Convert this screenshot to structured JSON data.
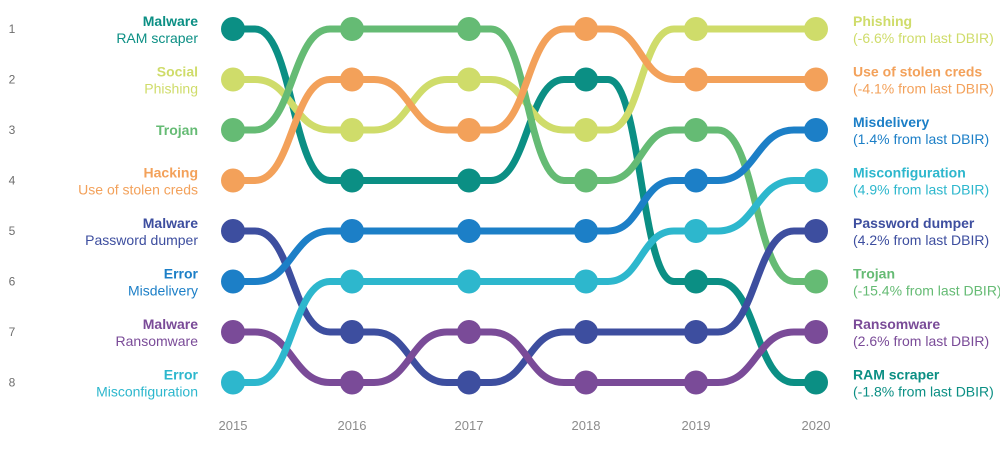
{
  "chart_data": {
    "type": "line",
    "subtype": "bump",
    "title": "",
    "xlabel": "",
    "ylabel": "",
    "x": [
      "2015",
      "2016",
      "2017",
      "2018",
      "2019",
      "2020"
    ],
    "y_ticks": [
      "1",
      "2",
      "3",
      "4",
      "5",
      "6",
      "7",
      "8"
    ],
    "ylim": [
      1,
      8
    ],
    "y_inverted": true,
    "grid": false,
    "series": [
      {
        "start_bold": "Malware",
        "start_label": "RAM scraper",
        "end_bold": "RAM scraper",
        "end_note": "(-1.8% from last DBIR)",
        "color": "#0b8f84",
        "values": [
          1,
          4,
          4,
          2,
          6,
          8
        ]
      },
      {
        "start_bold": "Social",
        "start_label": "Phishing",
        "end_bold": "Phishing",
        "end_note": "(-6.6% from last DBIR)",
        "color": "#cfdc6a",
        "values": [
          2,
          3,
          2,
          3,
          1,
          1
        ]
      },
      {
        "start_bold": "Trojan",
        "start_label": "",
        "end_bold": "Trojan",
        "end_note": "(-15.4% from last DBIR)",
        "color": "#65bb74",
        "values": [
          3,
          1,
          1,
          4,
          3,
          6
        ]
      },
      {
        "start_bold": "Hacking",
        "start_label": "Use of stolen creds",
        "end_bold": "Use of stolen creds",
        "end_note": "(-4.1% from last DBIR)",
        "color": "#f3a15a",
        "values": [
          4,
          2,
          3,
          1,
          2,
          2
        ]
      },
      {
        "start_bold": "Malware",
        "start_label": "Password dumper",
        "end_bold": "Password dumper",
        "end_note": "(4.2% from last DBIR)",
        "color": "#3d4e9f",
        "values": [
          5,
          7,
          8,
          7,
          7,
          5
        ]
      },
      {
        "start_bold": "Error",
        "start_label": "Misdelivery",
        "end_bold": "Misdelivery",
        "end_note": "(1.4% from last DBIR)",
        "color": "#1c7fc7",
        "values": [
          6,
          5,
          5,
          5,
          4,
          3
        ]
      },
      {
        "start_bold": "Malware",
        "start_label": "Ransomware",
        "end_bold": "Ransomware",
        "end_note": "(2.6% from last DBIR)",
        "color": "#7a4b98",
        "values": [
          7,
          8,
          7,
          8,
          8,
          7
        ]
      },
      {
        "start_bold": "Error",
        "start_label": "Misconfiguration",
        "end_bold": "Misconfiguration",
        "end_note": "(4.9% from last DBIR)",
        "color": "#2db7cd",
        "values": [
          8,
          6,
          6,
          6,
          5,
          4
        ]
      }
    ]
  }
}
